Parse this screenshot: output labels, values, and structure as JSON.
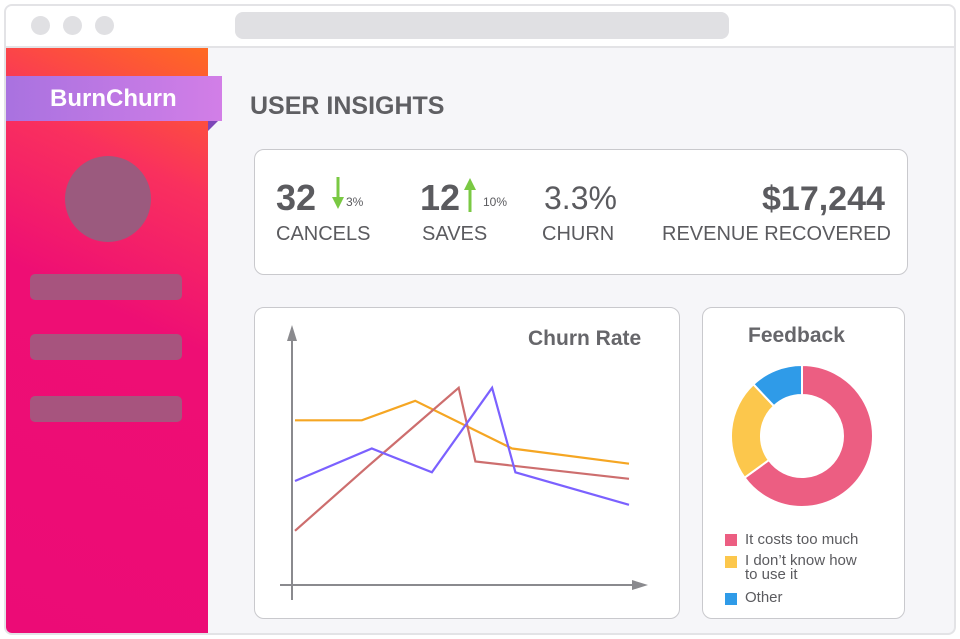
{
  "app": {
    "brand": "BurnChurn"
  },
  "page": {
    "title": "USER INSIGHTS"
  },
  "stats": [
    {
      "value": "32",
      "label": "CANCELS",
      "change": "3%",
      "direction": "down",
      "color": "#7ac943"
    },
    {
      "value": "12",
      "label": "SAVES",
      "change": "10%",
      "direction": "up",
      "color": "#7ac943"
    },
    {
      "value": "3.3%",
      "label": "CHURN"
    },
    {
      "value": "$17,244",
      "label": "REVENUE RECOVERED"
    }
  ],
  "chart_data": [
    {
      "type": "line",
      "title": "Churn Rate",
      "x": [
        0,
        1,
        2,
        3,
        4,
        5,
        6,
        7,
        8,
        9
      ],
      "series": [
        {
          "color": "#f5a623",
          "values": [
            [
              0,
              7.6
            ],
            [
              2,
              7.6
            ],
            [
              3.6,
              8.5
            ],
            [
              6.5,
              6.3
            ],
            [
              10,
              5.6
            ]
          ]
        },
        {
          "color": "#cd6e6e",
          "values": [
            [
              0,
              2.5
            ],
            [
              2.2,
              5.5
            ],
            [
              4.9,
              9.1
            ],
            [
              5.4,
              5.7
            ],
            [
              10,
              4.9
            ]
          ]
        },
        {
          "color": "#7b61ff",
          "values": [
            [
              0,
              4.8
            ],
            [
              2.3,
              6.3
            ],
            [
              4.1,
              5.2
            ],
            [
              5.9,
              9.1
            ],
            [
              6.6,
              5.2
            ],
            [
              10,
              3.7
            ]
          ]
        }
      ],
      "xlim": [
        0,
        10
      ],
      "ylim": [
        0,
        12
      ]
    },
    {
      "type": "pie",
      "title": "Feedback",
      "labels": [
        "It costs too much",
        "I don't know how to use it",
        "Other"
      ],
      "values": [
        65,
        23,
        12
      ],
      "colors": [
        "#ec5e82",
        "#fcc74c",
        "#2f9be8"
      ]
    }
  ],
  "legend": [
    {
      "line1": "It costs too much",
      "line2": "",
      "color": "#ec5e82"
    },
    {
      "line1": "I don’t know how",
      "line2": "to use it",
      "color": "#fcc74c"
    },
    {
      "line1": "Other",
      "line2": "",
      "color": "#2f9be8"
    }
  ]
}
